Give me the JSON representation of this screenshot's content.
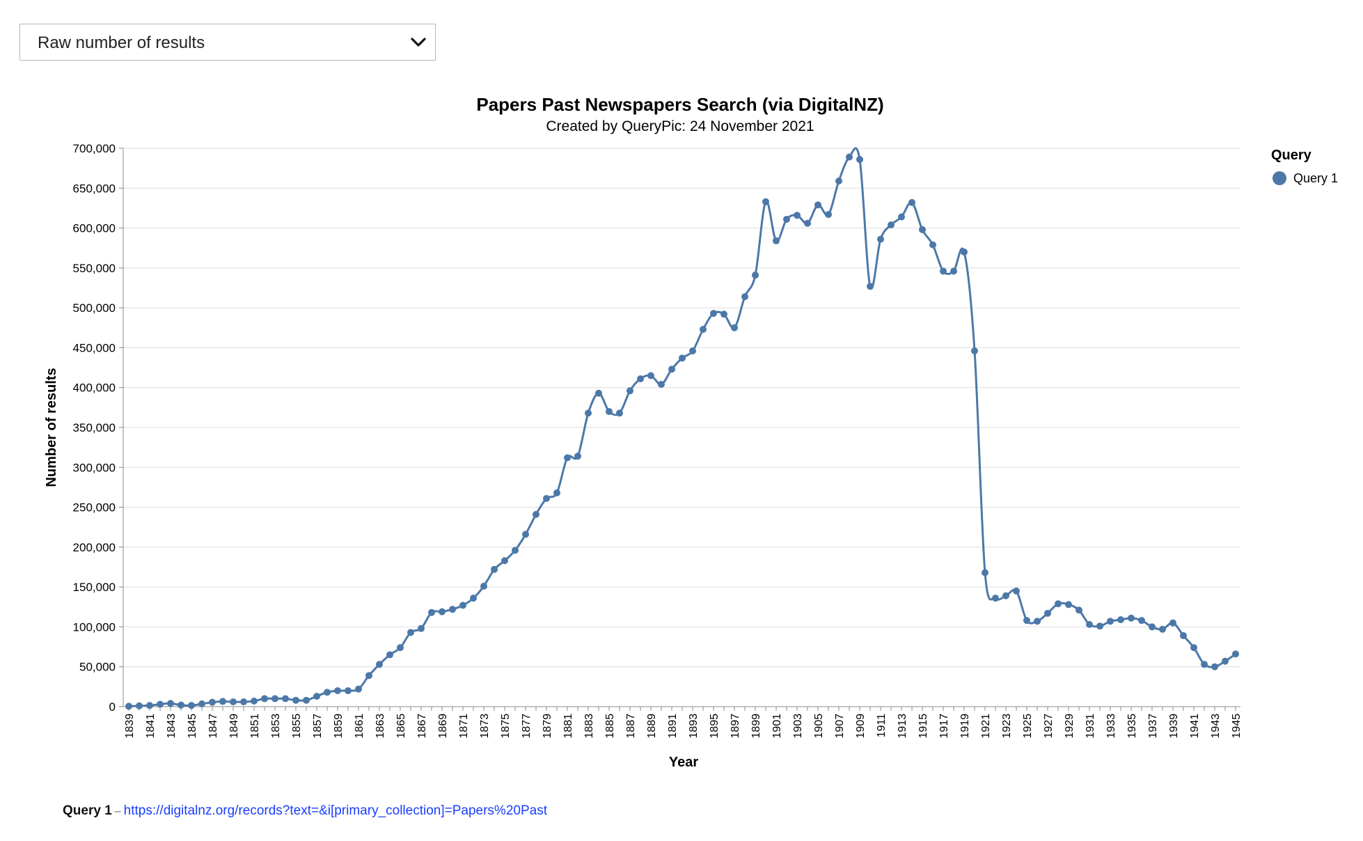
{
  "dropdown": {
    "selected": "Raw number of results"
  },
  "footer": {
    "query_label": "Query 1",
    "separator": "–",
    "query_url": "https://digitalnz.org/records?text=&i[primary_collection]=Papers%20Past"
  },
  "chart_data": {
    "type": "line",
    "title": "Papers Past Newspapers Search (via DigitalNZ)",
    "subtitle": "Created by QueryPic: 24 November 2021",
    "xlabel": "Year",
    "ylabel": "Number of results",
    "ylim": [
      0,
      700000
    ],
    "yticks": [
      0,
      50000,
      100000,
      150000,
      200000,
      250000,
      300000,
      350000,
      400000,
      450000,
      500000,
      550000,
      600000,
      650000,
      700000
    ],
    "xlim": [
      1839,
      1945
    ],
    "xtick_step": 2,
    "grid": true,
    "legend": {
      "title": "Query",
      "position": "top-right"
    },
    "series": [
      {
        "name": "Query 1",
        "color": "#4c78a8",
        "x": [
          1839,
          1840,
          1841,
          1842,
          1843,
          1844,
          1845,
          1846,
          1847,
          1848,
          1849,
          1850,
          1851,
          1852,
          1853,
          1854,
          1855,
          1856,
          1857,
          1858,
          1859,
          1860,
          1861,
          1862,
          1863,
          1864,
          1865,
          1866,
          1867,
          1868,
          1869,
          1870,
          1871,
          1872,
          1873,
          1874,
          1875,
          1876,
          1877,
          1878,
          1879,
          1880,
          1881,
          1882,
          1883,
          1884,
          1885,
          1886,
          1887,
          1888,
          1889,
          1890,
          1891,
          1892,
          1893,
          1894,
          1895,
          1896,
          1897,
          1898,
          1899,
          1900,
          1901,
          1902,
          1903,
          1904,
          1905,
          1906,
          1907,
          1908,
          1909,
          1910,
          1911,
          1912,
          1913,
          1914,
          1915,
          1916,
          1917,
          1918,
          1919,
          1920,
          1921,
          1922,
          1923,
          1924,
          1925,
          1926,
          1927,
          1928,
          1929,
          1930,
          1931,
          1932,
          1933,
          1934,
          1935,
          1936,
          1937,
          1938,
          1939,
          1940,
          1941,
          1942,
          1943,
          1944,
          1945
        ],
        "y": [
          500,
          1000,
          1500,
          3000,
          4000,
          2000,
          1500,
          3500,
          5500,
          6500,
          6000,
          6000,
          7000,
          10000,
          10000,
          10000,
          8000,
          8000,
          13000,
          18000,
          20000,
          20000,
          22000,
          39000,
          53000,
          65000,
          74000,
          93000,
          98000,
          118000,
          119000,
          122000,
          127000,
          136000,
          151000,
          172000,
          183000,
          196000,
          216000,
          241000,
          261000,
          268000,
          312000,
          314000,
          368000,
          393000,
          370000,
          368000,
          396000,
          411000,
          415000,
          404000,
          423000,
          437000,
          446000,
          473000,
          493000,
          492000,
          475000,
          514000,
          541000,
          633000,
          584000,
          611000,
          616000,
          606000,
          629000,
          617000,
          659000,
          689000,
          686000,
          527000,
          586000,
          604000,
          614000,
          632000,
          598000,
          579000,
          546000,
          546000,
          570000,
          446000,
          168000,
          136000,
          139000,
          145000,
          108000,
          107000,
          117000,
          129000,
          128000,
          121000,
          103000,
          101000,
          107000,
          109000,
          111000,
          108000,
          100000,
          97000,
          105000,
          89000,
          74000,
          53000,
          50000,
          57000,
          66000
        ]
      }
    ]
  }
}
